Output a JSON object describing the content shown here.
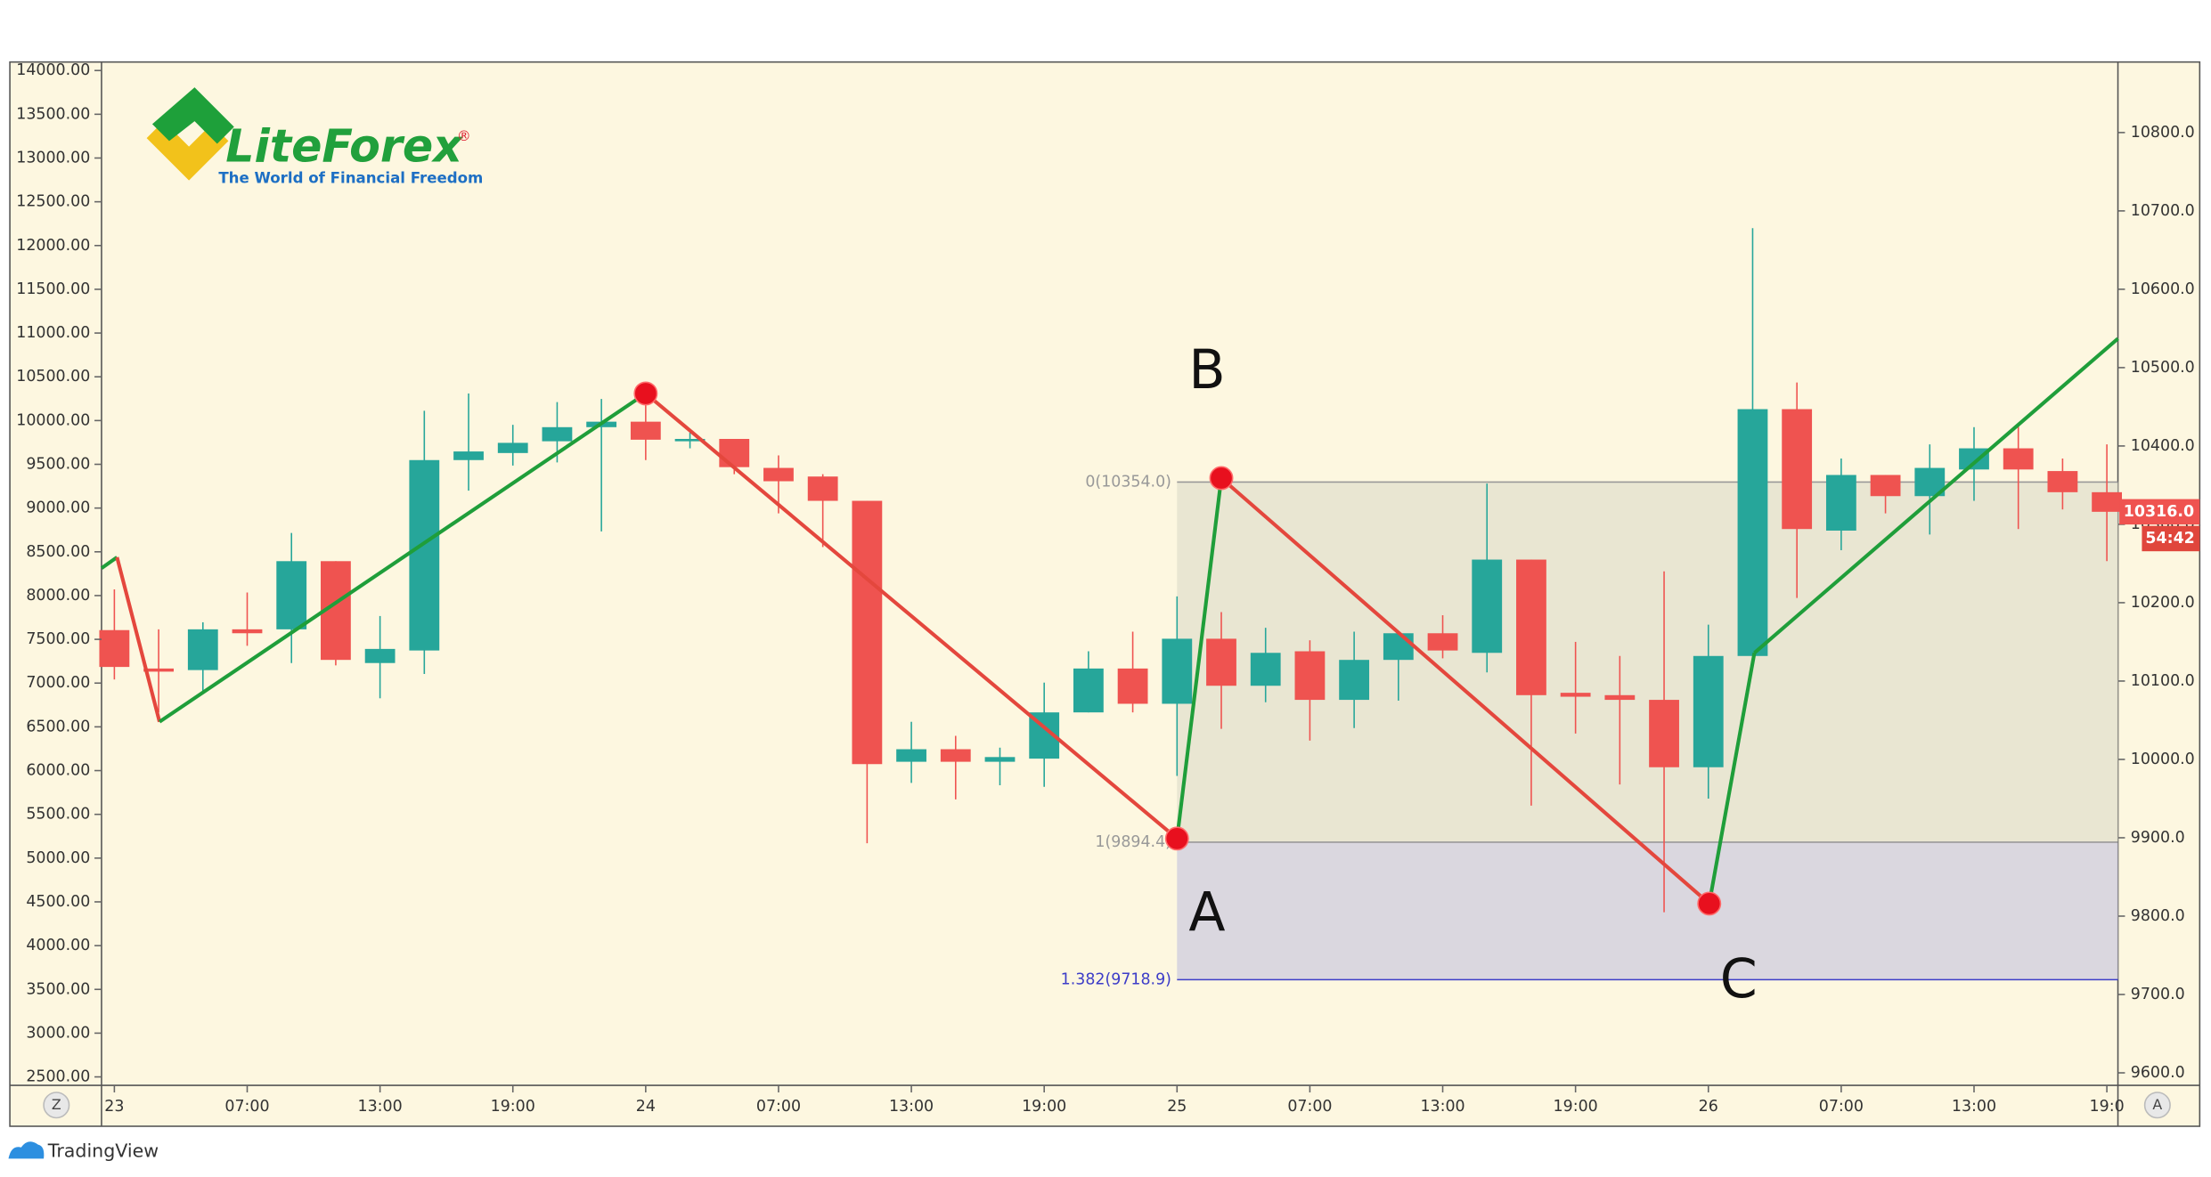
{
  "chart_data": {
    "type": "candlestick",
    "up_color": "#26a69a",
    "down_color": "#ef5350",
    "open": [
      10165,
      10116,
      10114,
      10166,
      10166,
      10253,
      10123,
      10139,
      10382,
      10391,
      10406,
      10424,
      10431,
      10406,
      10409,
      10372,
      10361,
      10330,
      9997,
      10013,
      9997,
      10001,
      10060,
      10116,
      10071,
      10154,
      10094,
      10138,
      10076,
      10127,
      10161,
      10136,
      10255,
      10085,
      10082,
      10076,
      9990,
      10132,
      10447,
      10292,
      10363,
      10336,
      10370,
      10397,
      10368,
      10341
    ],
    "high": [
      10217,
      10166,
      10175,
      10213,
      10289,
      10253,
      10183,
      10445,
      10467,
      10427,
      10456,
      10460,
      10460,
      10417,
      10409,
      10388,
      10364,
      10330,
      10048,
      10030,
      10015,
      10098,
      10138,
      10163,
      10208,
      10188,
      10168,
      10152,
      10163,
      10163,
      10184,
      10352,
      10255,
      10150,
      10132,
      10240,
      10172,
      10678,
      10481,
      10384,
      10363,
      10402,
      10424,
      10427,
      10384,
      10402
    ],
    "low": [
      10102,
      10060,
      10084,
      10145,
      10123,
      10120,
      10078,
      10109,
      10343,
      10375,
      10379,
      10291,
      10382,
      10397,
      10364,
      10314,
      10271,
      9893,
      9970,
      9949,
      9967,
      9965,
      10060,
      10060,
      9979,
      10039,
      10073,
      10024,
      10040,
      10075,
      10129,
      10111,
      9941,
      10033,
      9968,
      9805,
      9950,
      10132,
      10206,
      10267,
      10314,
      10287,
      10330,
      10294,
      10319,
      10253
    ],
    "close": [
      10118,
      10112,
      10166,
      10161,
      10253,
      10127,
      10141,
      10382,
      10393,
      10404,
      10424,
      10431,
      10408,
      10409,
      10373,
      10355,
      10330,
      9994,
      10013,
      9997,
      10003,
      10060,
      10116,
      10071,
      10154,
      10094,
      10136,
      10076,
      10127,
      10161,
      10139,
      10255,
      10082,
      10080,
      10076,
      9990,
      10132,
      10447,
      10294,
      10363,
      10336,
      10372,
      10397,
      10370,
      10341,
      10316
    ],
    "axis": "y2",
    "xlim": [
      -0.29,
      45.25
    ],
    "xticks": [
      {
        "value": 0,
        "label": "23"
      },
      {
        "value": 3,
        "label": "07:00"
      },
      {
        "value": 6,
        "label": "13:00"
      },
      {
        "value": 9,
        "label": "19:00"
      },
      {
        "value": 12,
        "label": "24"
      },
      {
        "value": 15,
        "label": "07:00"
      },
      {
        "value": 18,
        "label": "13:00"
      },
      {
        "value": 21,
        "label": "19:00"
      },
      {
        "value": 24,
        "label": "25"
      },
      {
        "value": 27,
        "label": "07:00"
      },
      {
        "value": 30,
        "label": "13:00"
      },
      {
        "value": 33,
        "label": "19:00"
      },
      {
        "value": 36,
        "label": "26"
      },
      {
        "value": 39,
        "label": "07:00"
      },
      {
        "value": 42,
        "label": "13:00"
      },
      {
        "value": 45,
        "label": "19:0"
      }
    ],
    "ylim": [
      2403,
      14097
    ],
    "yticks": [
      {
        "value": 2500,
        "label": "2500.00"
      },
      {
        "value": 3000,
        "label": "3000.00"
      },
      {
        "value": 3500,
        "label": "3500.00"
      },
      {
        "value": 4000,
        "label": "4000.00"
      },
      {
        "value": 4500,
        "label": "4500.00"
      },
      {
        "value": 5000,
        "label": "5000.00"
      },
      {
        "value": 5500,
        "label": "5500.00"
      },
      {
        "value": 6000,
        "label": "6000.00"
      },
      {
        "value": 6500,
        "label": "6500.00"
      },
      {
        "value": 7000,
        "label": "7000.00"
      },
      {
        "value": 7500,
        "label": "7500.00"
      },
      {
        "value": 8000,
        "label": "8000.00"
      },
      {
        "value": 8500,
        "label": "8500.00"
      },
      {
        "value": 9000,
        "label": "9000.00"
      },
      {
        "value": 9500,
        "label": "9500.00"
      },
      {
        "value": 10000,
        "label": "10000.00"
      },
      {
        "value": 10500,
        "label": "10500.00"
      },
      {
        "value": 11000,
        "label": "11000.00"
      },
      {
        "value": 11500,
        "label": "11500.00"
      },
      {
        "value": 12000,
        "label": "12000.00"
      },
      {
        "value": 12500,
        "label": "12500.00"
      },
      {
        "value": 13000,
        "label": "13000.00"
      },
      {
        "value": 13500,
        "label": "13500.00"
      },
      {
        "value": 14000,
        "label": "14000.00"
      }
    ],
    "y2lim": [
      9584,
      10890
    ],
    "y2ticks": [
      {
        "value": 9600,
        "label": "9600.0"
      },
      {
        "value": 9700,
        "label": "9700.0"
      },
      {
        "value": 9800,
        "label": "9800.0"
      },
      {
        "value": 9900,
        "label": "9900.0"
      },
      {
        "value": 10000,
        "label": "10000.0"
      },
      {
        "value": 10100,
        "label": "10100.0"
      },
      {
        "value": 10200,
        "label": "10200.0"
      },
      {
        "value": 10300,
        "label": "10300.0"
      },
      {
        "value": 10400,
        "label": "10400.0"
      },
      {
        "value": 10500,
        "label": "10500.0"
      },
      {
        "value": 10600,
        "label": "10600.0"
      },
      {
        "value": 10700,
        "label": "10700.0"
      },
      {
        "value": 10800,
        "label": "10800.0"
      }
    ],
    "last_price_label": "10316.0",
    "countdown": "54:42",
    "zigzag": {
      "x": [
        -0.29,
        0.06,
        1.02,
        12.0,
        24.0,
        25.0,
        36.02,
        37.04,
        45.25
      ],
      "y": [
        10244,
        10258,
        10048,
        10467,
        9899,
        10359,
        9816,
        10136,
        10537
      ],
      "up_color": "#1f9e3a",
      "down_color": "#e4473d",
      "pivots": [
        3,
        4,
        5,
        6
      ],
      "pivot_color": "#e8101e"
    },
    "fib": {
      "x_start": 24,
      "levels": [
        {
          "price": 10354.0,
          "label": "0(10354.0)",
          "color": "#999999"
        },
        {
          "price": 9894.4,
          "label": "1(9894.4)",
          "color": "#999999"
        },
        {
          "price": 9718.9,
          "label": "1.382(9718.9)",
          "color": "#3d3dc8"
        }
      ],
      "fills": [
        "#e5e3cf",
        "#d3d1de"
      ]
    },
    "annotations": [
      "B",
      "A",
      "C"
    ]
  },
  "branding": {
    "logo": "LiteForex",
    "logo_mark": "®",
    "tagline": "The World of Financial Freedom",
    "footer": "TradingView",
    "left_button": "Z",
    "right_button": "A"
  }
}
